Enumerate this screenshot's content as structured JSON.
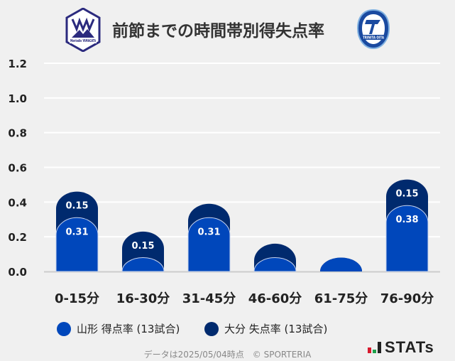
{
  "header": {
    "title": "前節までの時間帯別得失点率",
    "home_logo_text": "Montedio YAMAGATA",
    "away_logo_text": "TRINITA OITA"
  },
  "chart_data": {
    "type": "bar",
    "stacked": true,
    "categories": [
      "0-15分",
      "16-30分",
      "31-45分",
      "46-60分",
      "61-75分",
      "76-90分"
    ],
    "series": [
      {
        "name": "山形 得点率 (13試合)",
        "color": "#0047bb",
        "values": [
          0.31,
          0.08,
          0.31,
          0.08,
          0.08,
          0.38
        ],
        "labels": [
          "0.31",
          "",
          "0.31",
          "",
          "",
          "0.38"
        ]
      },
      {
        "name": "大分 失点率 (13試合)",
        "color": "#002a6e",
        "values": [
          0.15,
          0.15,
          0.08,
          0.08,
          0,
          0.15
        ],
        "labels": [
          "0.15",
          "0.15",
          "",
          "",
          "",
          "0.15"
        ]
      }
    ],
    "ylim": [
      0,
      1.2
    ],
    "yticks": [
      "0.0",
      "0.2",
      "0.4",
      "0.6",
      "0.8",
      "1.0",
      "1.2"
    ],
    "grid": true,
    "legend": "bottom"
  },
  "legend": {
    "home": "山形 得点率 (13試合)",
    "away": "大分 失点率 (13試合)"
  },
  "footer": {
    "note": "データは2025/05/04時点　© SPORTERIA",
    "brand": "STATs"
  }
}
